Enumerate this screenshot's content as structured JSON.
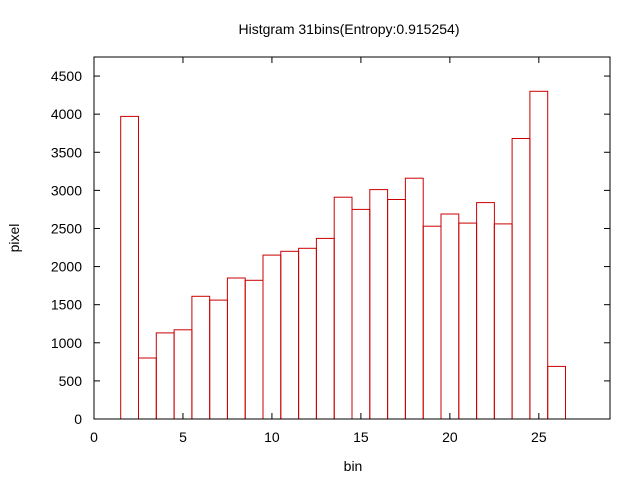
{
  "chart_data": {
    "type": "bar",
    "title": "Histgram 31bins(Entropy:0.915254)",
    "xlabel": "bin",
    "ylabel": "pixel",
    "xlim": [
      0,
      29
    ],
    "ylim": [
      0,
      4750
    ],
    "xticks": [
      0,
      5,
      10,
      15,
      20,
      25
    ],
    "yticks": [
      0,
      500,
      1000,
      1500,
      2000,
      2500,
      3000,
      3500,
      4000,
      4500
    ],
    "bin_width": 1,
    "series": [
      {
        "color": "#cc0000",
        "x": [
          2,
          3,
          4,
          5,
          6,
          7,
          8,
          9,
          10,
          11,
          12,
          13,
          14,
          15,
          16,
          17,
          18,
          19,
          20,
          21,
          22,
          23,
          24,
          25,
          26
        ],
        "values": [
          3970,
          800,
          1130,
          1170,
          1610,
          1560,
          1850,
          1820,
          2150,
          2200,
          2240,
          2370,
          2910,
          2750,
          3010,
          2880,
          3160,
          2530,
          2690,
          2570,
          2840,
          2560,
          3680,
          4300,
          690
        ]
      }
    ],
    "legend": "none",
    "grid": false
  }
}
